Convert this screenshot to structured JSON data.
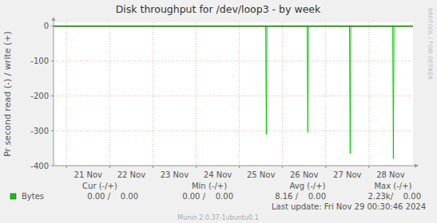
{
  "chart_data": {
    "type": "line",
    "title": "Disk throughput for /dev/loop3 - by week",
    "y_label": "Pr second read (-) / write (+)",
    "x": [
      20.7,
      25.61,
      25.625,
      25.64,
      26.57,
      26.585,
      26.6,
      27.55,
      27.565,
      27.58,
      28.55,
      28.565,
      28.58,
      29.02
    ],
    "series": [
      {
        "name": "Bytes",
        "color": "#00cc00",
        "values": [
          0,
          0,
          -310,
          0,
          0,
          -305,
          0,
          0,
          -365,
          0,
          0,
          -380,
          0,
          0
        ]
      }
    ],
    "xlim": [
      20.7,
      29.02
    ],
    "xticks": [
      {
        "value": 21.5,
        "label": "21 Nov"
      },
      {
        "value": 22.5,
        "label": "22 Nov"
      },
      {
        "value": 23.5,
        "label": "23 Nov"
      },
      {
        "value": 24.5,
        "label": "24 Nov"
      },
      {
        "value": 25.5,
        "label": "25 Nov"
      },
      {
        "value": 26.5,
        "label": "26 Nov"
      },
      {
        "value": 27.5,
        "label": "27 Nov"
      },
      {
        "value": 28.5,
        "label": "28 Nov"
      }
    ],
    "ylim": [
      -400,
      11
    ],
    "yticks": [
      -400,
      -300,
      -200,
      -100,
      0
    ],
    "grid": true,
    "summary": {
      "columns": [
        "Cur (-/+)",
        "Min (-/+)",
        "Avg (-/+)",
        "Max (-/+)"
      ],
      "values": [
        "0.00 /    0.00",
        "0.00 /    0.00",
        "8.16 /    0.00",
        "2.23k/    0.00"
      ]
    },
    "last_update": "Last update: Fri Nov 29 00:30:46 2024",
    "footer": "Munin 2.0.37-1ubuntu0.1",
    "watermark": "RRDTOOL / TOBI OETIKER"
  }
}
